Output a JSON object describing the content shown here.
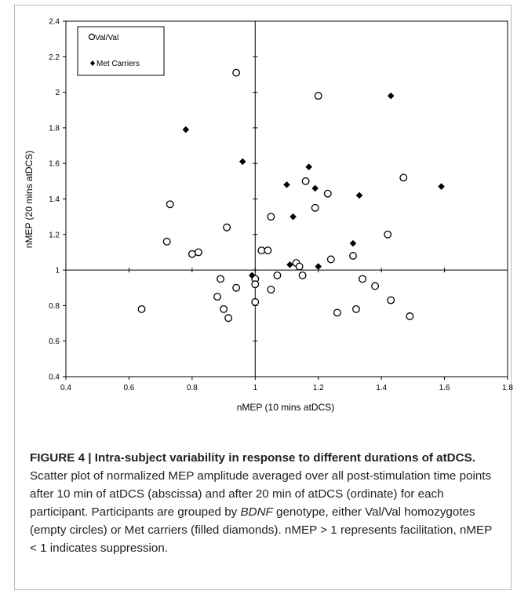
{
  "chart_data": {
    "type": "scatter",
    "xlabel": "nMEP (10 mins atDCS)",
    "ylabel": "nMEP (20 mins atDCS)",
    "xlim": [
      0.4,
      1.8
    ],
    "ylim": [
      0.4,
      2.4
    ],
    "xticks": [
      "0.4",
      "0.6",
      "0.8",
      "1",
      "1.2",
      "1.4",
      "1.6",
      "1.8"
    ],
    "yticks": [
      "0.4",
      "0.6",
      "0.8",
      "1",
      "1.2",
      "1.4",
      "1.6",
      "1.8",
      "2",
      "2.2",
      "2.4"
    ],
    "reference_lines": {
      "x": 1,
      "y": 1
    },
    "legend_position": "top-left",
    "series": [
      {
        "name": "Val/Val",
        "marker": "open-circle",
        "color": "#000000",
        "points": [
          [
            0.64,
            0.78
          ],
          [
            0.72,
            1.16
          ],
          [
            0.73,
            1.37
          ],
          [
            0.8,
            1.09
          ],
          [
            0.82,
            1.1
          ],
          [
            0.88,
            0.85
          ],
          [
            0.89,
            0.95
          ],
          [
            0.9,
            0.78
          ],
          [
            0.91,
            1.24
          ],
          [
            0.915,
            0.73
          ],
          [
            0.94,
            0.9
          ],
          [
            0.94,
            2.11
          ],
          [
            1.0,
            0.95
          ],
          [
            1.0,
            0.92
          ],
          [
            1.0,
            0.82
          ],
          [
            1.02,
            1.11
          ],
          [
            1.04,
            1.11
          ],
          [
            1.05,
            0.89
          ],
          [
            1.05,
            1.3
          ],
          [
            1.07,
            0.97
          ],
          [
            1.13,
            1.04
          ],
          [
            1.14,
            1.02
          ],
          [
            1.15,
            0.97
          ],
          [
            1.16,
            1.5
          ],
          [
            1.19,
            1.35
          ],
          [
            1.2,
            1.98
          ],
          [
            1.23,
            1.43
          ],
          [
            1.24,
            1.06
          ],
          [
            1.26,
            0.76
          ],
          [
            1.31,
            1.08
          ],
          [
            1.32,
            0.78
          ],
          [
            1.34,
            0.95
          ],
          [
            1.38,
            0.91
          ],
          [
            1.42,
            1.2
          ],
          [
            1.43,
            0.83
          ],
          [
            1.47,
            1.52
          ],
          [
            1.49,
            0.74
          ]
        ]
      },
      {
        "name": "Met Carriers",
        "marker": "filled-diamond",
        "color": "#000000",
        "points": [
          [
            0.78,
            1.79
          ],
          [
            0.96,
            1.61
          ],
          [
            0.99,
            0.97
          ],
          [
            1.1,
            1.48
          ],
          [
            1.11,
            1.03
          ],
          [
            1.12,
            1.3
          ],
          [
            1.17,
            1.58
          ],
          [
            1.19,
            1.46
          ],
          [
            1.2,
            1.02
          ],
          [
            1.31,
            1.15
          ],
          [
            1.33,
            1.42
          ],
          [
            1.43,
            1.98
          ],
          [
            1.59,
            1.47
          ]
        ]
      }
    ]
  },
  "caption": {
    "title": "FIGURE 4 | Intra-subject variability in response to different durations of atDCS.",
    "text_before_italic": " Scatter plot of normalized MEP amplitude averaged over all post-stimulation time points after 10 min of atDCS (abscissa) and after 20 min of atDCS (ordinate) for each participant. Participants are grouped by ",
    "italic": "BDNF",
    "text_after_italic": " genotype, either Val/Val homozygotes (empty circles) or Met carriers (filled diamonds). nMEP > 1 represents facilitation, nMEP < 1 indicates suppression."
  }
}
